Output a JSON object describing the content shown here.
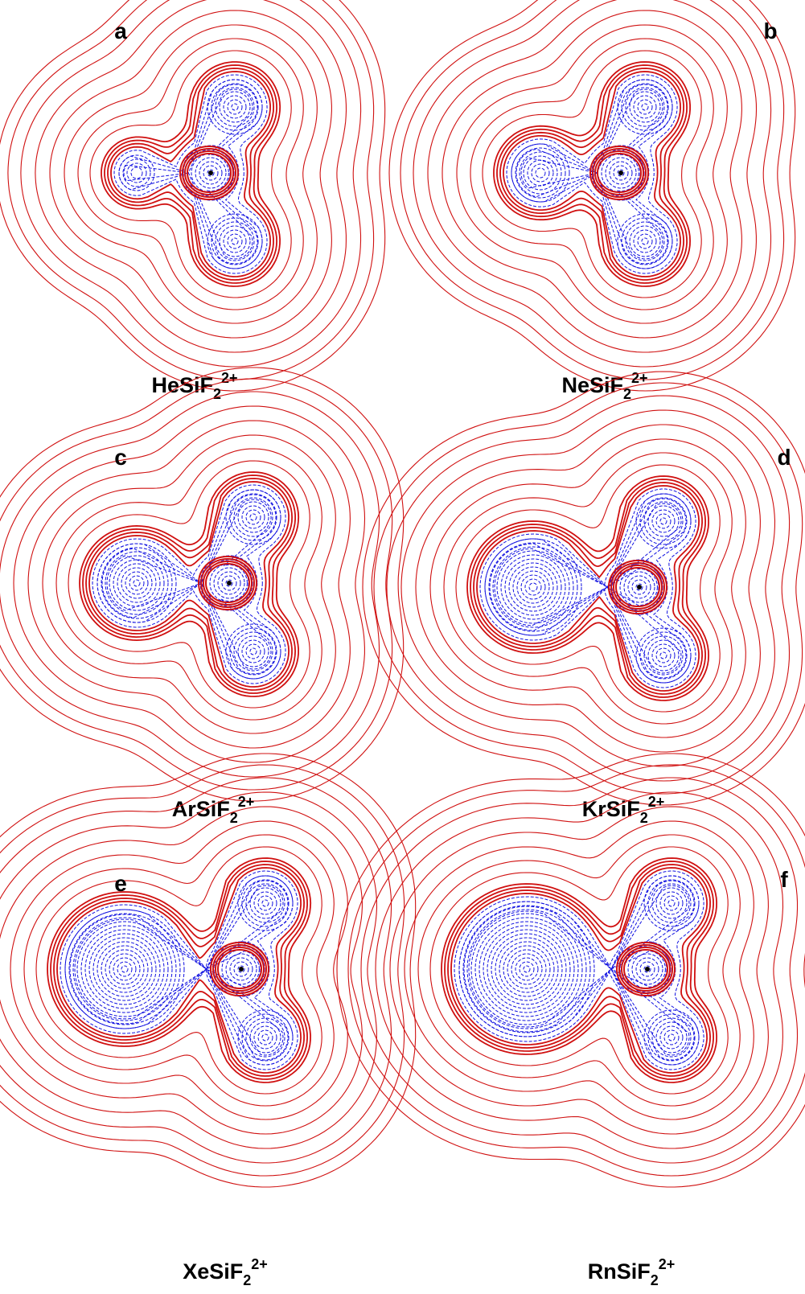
{
  "panels": [
    {
      "letter": "a",
      "formula": "HeSiF",
      "subscript": "2",
      "superscript": "2+"
    },
    {
      "letter": "b",
      "formula": "NeSiF",
      "subscript": "2",
      "superscript": "2+"
    },
    {
      "letter": "c",
      "formula": "ArSiF",
      "subscript": "2",
      "superscript": "2+"
    },
    {
      "letter": "d",
      "formula": "KrSiF",
      "subscript": "2",
      "superscript": "2+"
    },
    {
      "letter": "e",
      "formula": "XeSiF",
      "subscript": "2",
      "superscript": "2+"
    },
    {
      "letter": "f",
      "formula": "RnSiF",
      "subscript": "2",
      "superscript": "2+"
    }
  ]
}
